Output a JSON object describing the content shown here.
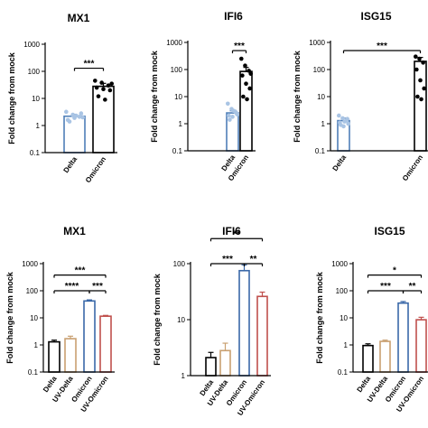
{
  "chart_data": [
    {
      "type": "bar",
      "scale": "log",
      "ylim": [
        0.1,
        1000
      ],
      "title": "MX1",
      "ylabel": "Fold change from mock",
      "categories": [
        "Delta",
        "Omicron"
      ],
      "values": [
        2.2,
        28
      ],
      "errors": [
        0.4,
        8
      ],
      "bar_colors": [
        "#4f7fb8",
        "#000000"
      ],
      "point_colors": [
        "#a9c4e4",
        "#000000"
      ],
      "points": [
        [
          3.2,
          2.5,
          2.1,
          1.6,
          1.9,
          2.8,
          1.4,
          2.3,
          2.0
        ],
        [
          45,
          38,
          30,
          25,
          22,
          20,
          12,
          9,
          35
        ]
      ],
      "ticks": [
        "0.1",
        "1",
        "10",
        "100",
        "1000"
      ],
      "brackets": [
        {
          "from": 0,
          "to": 1,
          "label": "***",
          "y": 130
        }
      ]
    },
    {
      "type": "bar",
      "scale": "log",
      "ylim": [
        0.1,
        1000
      ],
      "title": "IFI6",
      "ylabel": "Fold change from mock",
      "categories": [
        "Delta",
        "Omicron"
      ],
      "values": [
        2.5,
        85
      ],
      "errors": [
        0.5,
        35
      ],
      "bar_colors": [
        "#4f7fb8",
        "#000000"
      ],
      "point_colors": [
        "#a9c4e4",
        "#000000"
      ],
      "points": [
        [
          5.5,
          3.5,
          2.8,
          2.0,
          1.8,
          2.5,
          1.4,
          3.0,
          2.2
        ],
        [
          250,
          140,
          90,
          60,
          30,
          20,
          10,
          8,
          70
        ]
      ],
      "ticks": [
        "0.1",
        "1",
        "10",
        "100",
        "1000"
      ],
      "brackets": [
        {
          "from": 0,
          "to": 1,
          "label": "***",
          "y": 500
        }
      ]
    },
    {
      "type": "bar",
      "scale": "log",
      "ylim": [
        0.1,
        1000
      ],
      "title": "ISG15",
      "ylabel": "Fold change from mock",
      "categories": [
        "Delta",
        "Omicron"
      ],
      "values": [
        1.3,
        200
      ],
      "errors": [
        0.3,
        80
      ],
      "bar_colors": [
        "#4f7fb8",
        "#000000"
      ],
      "point_colors": [
        "#a9c4e4",
        "#000000"
      ],
      "points": [
        [
          2.0,
          1.6,
          1.3,
          1.1,
          0.8,
          1.5,
          0.9,
          1.2,
          1.0
        ],
        [
          300,
          250,
          180,
          100,
          40,
          20,
          10,
          8
        ]
      ],
      "ticks": [
        "0.1",
        "1",
        "10",
        "100",
        "1000"
      ],
      "brackets": [
        {
          "from": 0,
          "to": 1,
          "label": "***",
          "y": 500
        }
      ]
    },
    {
      "type": "bar",
      "scale": "log",
      "ylim": [
        0.1,
        1000
      ],
      "title": "MX1",
      "ylabel": "Fold change from mock",
      "categories": [
        "Delta",
        "UV-Delta",
        "Omicron",
        "UV-Omicron"
      ],
      "values": [
        1.3,
        1.7,
        42,
        11.5
      ],
      "errors": [
        0.2,
        0.4,
        4,
        0.8
      ],
      "bar_colors": [
        "#000000",
        "#c9a071",
        "#3a68a8",
        "#c0504d"
      ],
      "ticks": [
        "0.1",
        "1",
        "10",
        "100",
        "1000"
      ],
      "brackets": [
        {
          "from": 0,
          "to": 3,
          "label": "***",
          "y": 380
        },
        {
          "from": 0,
          "to": 2,
          "label": "****",
          "y": 100
        },
        {
          "from": 2,
          "to": 3,
          "label": "***",
          "y": 100
        }
      ]
    },
    {
      "type": "bar",
      "scale": "log",
      "ylim": [
        1,
        100
      ],
      "title": "IFI6",
      "ylabel": "Fold change from mock",
      "categories": [
        "Delta",
        "UV-Delta",
        "Omicron",
        "UV-Omicron"
      ],
      "values": [
        2.1,
        2.8,
        75,
        26
      ],
      "errors": [
        0.5,
        1.0,
        20,
        5
      ],
      "bar_colors": [
        "#000000",
        "#c9a071",
        "#3a68a8",
        "#c0504d"
      ],
      "ticks": [
        "1",
        "10",
        "100"
      ],
      "brackets": [
        {
          "from": 0,
          "to": 3,
          "label": "**",
          "y": 280
        },
        {
          "from": 0,
          "to": 2,
          "label": "***",
          "y": 100
        },
        {
          "from": 2,
          "to": 3,
          "label": "**",
          "y": 100
        }
      ]
    },
    {
      "type": "bar",
      "scale": "log",
      "ylim": [
        0.1,
        1000
      ],
      "title": "ISG15",
      "ylabel": "Fold change from mock",
      "categories": [
        "Delta",
        "UV-Delta",
        "Omicron",
        "UV-Omicron"
      ],
      "values": [
        0.95,
        1.35,
        35,
        8.5
      ],
      "errors": [
        0.15,
        0.15,
        5,
        2
      ],
      "bar_colors": [
        "#000000",
        "#c9a071",
        "#3a68a8",
        "#c0504d"
      ],
      "ticks": [
        "0.1",
        "1",
        "10",
        "100",
        "1000"
      ],
      "brackets": [
        {
          "from": 0,
          "to": 3,
          "label": "*",
          "y": 380
        },
        {
          "from": 0,
          "to": 2,
          "label": "***",
          "y": 100
        },
        {
          "from": 2,
          "to": 3,
          "label": "**",
          "y": 100
        }
      ]
    }
  ]
}
